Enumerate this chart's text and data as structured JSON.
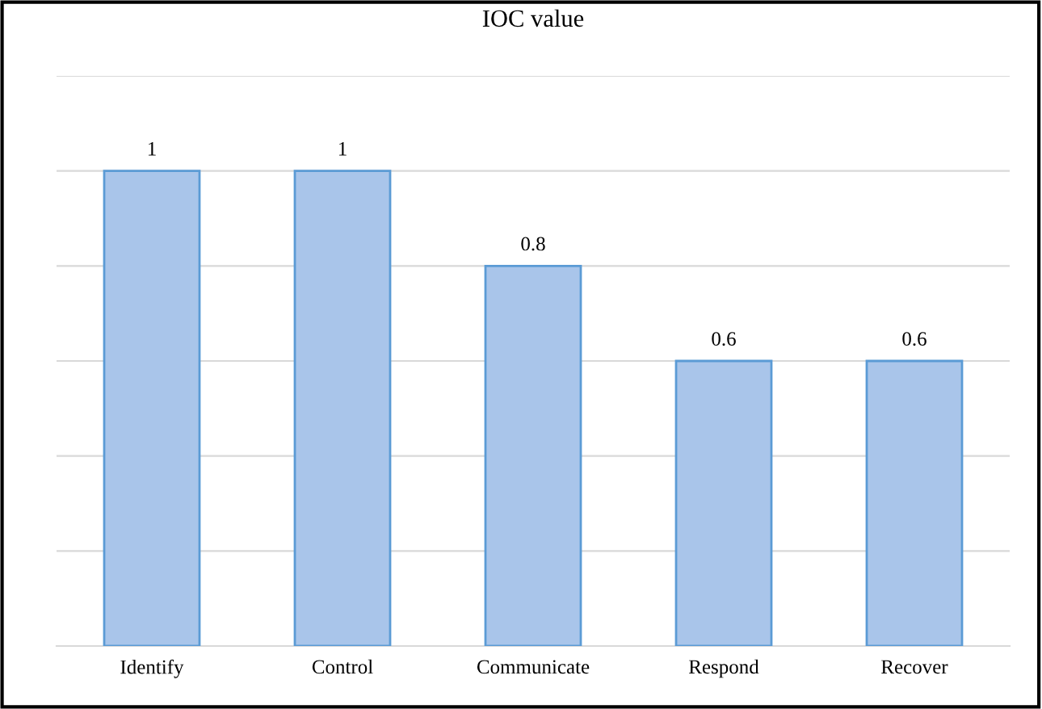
{
  "chart_data": {
    "type": "bar",
    "title": "IOC value",
    "categories": [
      "Identify",
      "Control",
      "Communicate",
      "Respond",
      "Recover"
    ],
    "values": [
      1,
      1,
      0.8,
      0.6,
      0.6
    ],
    "color": "#a9c5ea",
    "ylim": [
      0,
      1.2
    ],
    "yticks": [
      {
        "value": 0,
        "label": null
      },
      {
        "value": 0.2,
        "label": null
      },
      {
        "value": 0.4,
        "label": null
      },
      {
        "value": 0.6,
        "label": null
      },
      {
        "value": 0.8,
        "label": null
      },
      {
        "value": 1,
        "label": null
      },
      {
        "value": 1.2,
        "label": null
      }
    ],
    "tick_labels": "x",
    "grid": "y",
    "data_labels": true
  }
}
